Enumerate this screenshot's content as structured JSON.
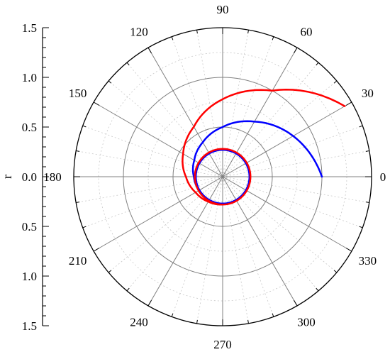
{
  "chart_data": {
    "type": "line",
    "coordinate_system": "polar",
    "title": "",
    "r_axis": {
      "label": "r",
      "range": [
        0,
        1.5
      ],
      "tick_labels_upper": [
        "1.5",
        "1.0",
        "0.5",
        "0.0"
      ],
      "tick_labels_lower": [
        "0.5",
        "1.0",
        "1.5"
      ],
      "major_ticks": [
        0.5,
        1.0,
        1.5
      ],
      "grid": true
    },
    "theta_axis": {
      "unit": "degrees",
      "tick_labels": [
        "0",
        "30",
        "60",
        "90",
        "120",
        "150",
        "180",
        "210",
        "240",
        "270",
        "300",
        "330"
      ],
      "major_step": 30,
      "minor_step": 10,
      "grid": true,
      "minor_grid": true
    },
    "legend": "none",
    "series": [
      {
        "color": "#0000ff",
        "points": [
          [
            0,
            1.0
          ],
          [
            30,
            0.82
          ],
          [
            60,
            0.64
          ],
          [
            90,
            0.5
          ],
          [
            120,
            0.4
          ],
          [
            150,
            0.33
          ],
          [
            180,
            0.29
          ],
          [
            210,
            0.275
          ],
          [
            240,
            0.27
          ],
          [
            270,
            0.27
          ],
          [
            300,
            0.27
          ],
          [
            330,
            0.27
          ],
          [
            360,
            0.27
          ],
          [
            540,
            0.27
          ],
          [
            720,
            0.27
          ],
          [
            900,
            0.27
          ],
          [
            1080,
            0.27
          ]
        ]
      },
      {
        "color": "#ff0000",
        "points": [
          [
            30,
            1.42
          ],
          [
            60,
            1.0
          ],
          [
            90,
            0.78
          ],
          [
            120,
            0.58
          ],
          [
            150,
            0.46
          ],
          [
            180,
            0.37
          ],
          [
            210,
            0.315
          ],
          [
            240,
            0.29
          ],
          [
            270,
            0.28
          ],
          [
            300,
            0.28
          ],
          [
            330,
            0.28
          ],
          [
            360,
            0.28
          ],
          [
            540,
            0.28
          ],
          [
            720,
            0.28
          ],
          [
            900,
            0.28
          ],
          [
            1080,
            0.28
          ]
        ]
      }
    ]
  }
}
